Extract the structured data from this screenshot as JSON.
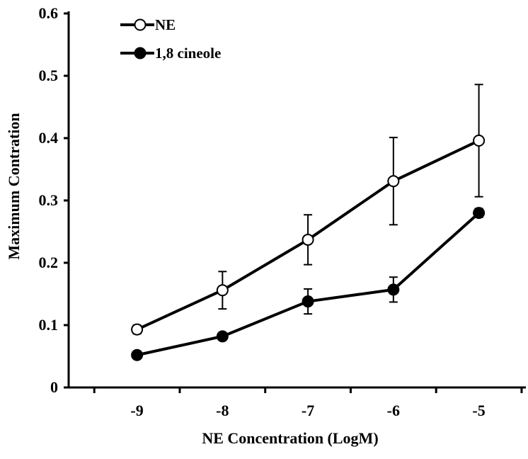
{
  "chart_data": {
    "type": "line",
    "title": "",
    "xlabel": "NE Concentration (LogM)",
    "ylabel": "Maximum Contration",
    "x": [
      -9,
      -8,
      -7,
      -6,
      -5
    ],
    "xtick_labels": [
      "-9",
      "-8",
      "-7",
      "-6",
      "-5"
    ],
    "xlim": [
      -9.8,
      -4.45
    ],
    "ylim": [
      0,
      0.6
    ],
    "yticks": [
      0,
      0.1,
      0.2,
      0.3,
      0.4,
      0.5,
      0.6
    ],
    "ytick_labels": [
      "0",
      "0.1",
      "0.2",
      "0.3",
      "0.4",
      "0.5",
      "0.6"
    ],
    "grid": false,
    "legend_position": "top-left",
    "series": [
      {
        "name": "NE",
        "marker": "open-circle",
        "color": "#000000",
        "values": [
          0.093,
          0.156,
          0.237,
          0.331,
          0.396
        ],
        "error": [
          0.007,
          0.03,
          0.04,
          0.07,
          0.09
        ]
      },
      {
        "name": "1,8 cineole",
        "marker": "filled-circle",
        "color": "#000000",
        "values": [
          0.052,
          0.082,
          0.138,
          0.157,
          0.28
        ],
        "error": [
          0.0,
          0.0,
          0.02,
          0.02,
          0.007
        ]
      }
    ]
  }
}
